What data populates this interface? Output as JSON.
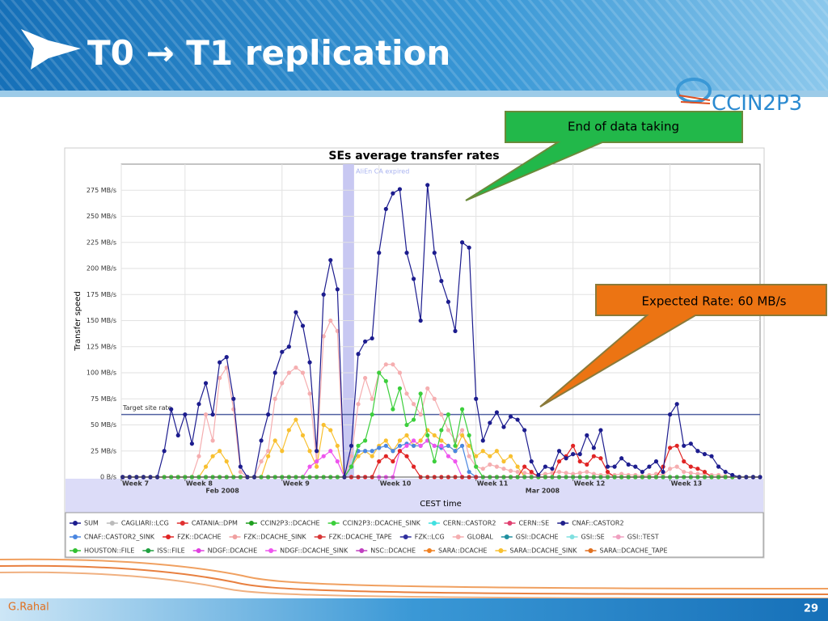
{
  "slide": {
    "title": "T0 → T1 replication",
    "logo": "CCIN2P3",
    "callouts": [
      {
        "text": "End of data taking"
      },
      {
        "text": "Expected Rate: 60 MB/s"
      }
    ],
    "author": "G.Rahal",
    "page": 29
  },
  "chart_data": {
    "type": "line",
    "title": "SEs average transfer rates",
    "x_label": "CEST time",
    "y_label": "Transfer speed",
    "xlim": [
      -4.6,
      41.5
    ],
    "ylim": [
      0,
      300
    ],
    "grid": true,
    "xticks": [
      {
        "value": -4.6,
        "label": "Week 7"
      },
      {
        "value": 0,
        "label": "Week 8"
      },
      {
        "value": 7,
        "label": "Week 9"
      },
      {
        "value": 14,
        "label": "Week 10"
      },
      {
        "value": 21,
        "label": "Week 11"
      },
      {
        "value": 28,
        "label": "Week 12"
      },
      {
        "value": 35,
        "label": "Week 13"
      }
    ],
    "yticks": [
      {
        "value": 0,
        "label": "0 B/s"
      },
      {
        "value": 25,
        "label": "25 MB/s"
      },
      {
        "value": 50,
        "label": "50 MB/s"
      },
      {
        "value": 75,
        "label": "75 MB/s"
      },
      {
        "value": 100,
        "label": "100 MB/s"
      },
      {
        "value": 125,
        "label": "125 MB/s"
      },
      {
        "value": 150,
        "label": "150 MB/s"
      },
      {
        "value": 175,
        "label": "175 MB/s"
      },
      {
        "value": 200,
        "label": "200 MB/s"
      },
      {
        "value": 225,
        "label": "225 MB/s"
      },
      {
        "value": 250,
        "label": "250 MB/s"
      },
      {
        "value": 275,
        "label": "275 MB/s"
      }
    ],
    "annotations": [
      {
        "text": "Feb 2008",
        "x": 2.7
      },
      {
        "text": "Mar 2008",
        "x": 25.8
      }
    ],
    "reference_line": {
      "label": "Target site rate",
      "value": 60
    },
    "span": {
      "label": "AliEn CA expired",
      "x": [
        11.4,
        12.2
      ]
    },
    "x": [
      -4.5,
      -4,
      -3.5,
      -3,
      -2.5,
      -2,
      -1.5,
      -1,
      -0.5,
      0,
      0.5,
      1,
      1.5,
      2,
      2.5,
      3,
      3.5,
      4,
      4.5,
      5,
      5.5,
      6,
      6.5,
      7,
      7.5,
      8,
      8.5,
      9,
      9.5,
      10,
      10.5,
      11,
      11.5,
      12,
      12.5,
      13,
      13.5,
      14,
      14.5,
      15,
      15.5,
      16,
      16.5,
      17,
      17.5,
      18,
      18.5,
      19,
      19.5,
      20,
      20.5,
      21,
      21.5,
      22,
      22.5,
      23,
      23.5,
      24,
      24.5,
      25,
      25.5,
      26,
      26.5,
      27,
      27.5,
      28,
      28.5,
      29,
      29.5,
      30,
      30.5,
      31,
      31.5,
      32,
      32.5,
      33,
      33.5,
      34,
      34.5,
      35,
      35.5,
      36,
      36.5,
      37,
      37.5,
      38,
      38.5,
      39,
      39.5,
      40,
      40.5,
      41,
      41.5
    ],
    "series": [
      {
        "name": "GLOBAL",
        "color": "#f5aeb0",
        "values": [
          0,
          0,
          0,
          0,
          0,
          0,
          0,
          0,
          0,
          0,
          0,
          20,
          60,
          35,
          95,
          105,
          65,
          5,
          0,
          0,
          15,
          25,
          75,
          90,
          100,
          105,
          100,
          80,
          15,
          135,
          150,
          140,
          0,
          20,
          70,
          95,
          75,
          100,
          108,
          108,
          100,
          80,
          70,
          60,
          85,
          75,
          60,
          45,
          35,
          45,
          20,
          10,
          8,
          12,
          10,
          8,
          6,
          5,
          4,
          3,
          2,
          3,
          4,
          5,
          4,
          3,
          4,
          5,
          3,
          2,
          2,
          2,
          3,
          2,
          2,
          1,
          2,
          3,
          2,
          8,
          10,
          5,
          4,
          3,
          3,
          2,
          2,
          1,
          0,
          0,
          0,
          0,
          0
        ]
      },
      {
        "name": "SARA::DCACHE_SINK",
        "color": "#f8c030",
        "values": [
          0,
          0,
          0,
          0,
          0,
          0,
          0,
          0,
          0,
          0,
          0,
          0,
          10,
          20,
          25,
          15,
          0,
          0,
          0,
          0,
          0,
          20,
          35,
          25,
          45,
          55,
          40,
          25,
          10,
          50,
          45,
          30,
          0,
          10,
          20,
          25,
          20,
          30,
          35,
          25,
          35,
          40,
          30,
          35,
          45,
          40,
          35,
          30,
          25,
          40,
          30,
          20,
          25,
          20,
          25,
          15,
          20,
          10,
          0,
          0,
          0,
          0,
          0,
          0,
          0,
          0,
          0,
          0,
          0,
          0,
          0,
          0,
          0,
          0,
          0,
          0,
          0,
          0,
          0,
          0,
          0,
          0,
          0,
          0,
          0,
          0,
          0,
          0,
          0,
          0,
          0,
          0,
          0
        ]
      },
      {
        "name": "CNAF::CASTOR2_SINK",
        "color": "#4a86e0",
        "values": [
          0,
          0,
          0,
          0,
          0,
          0,
          0,
          0,
          0,
          0,
          0,
          0,
          0,
          0,
          0,
          0,
          0,
          0,
          0,
          0,
          0,
          0,
          0,
          0,
          0,
          0,
          0,
          0,
          0,
          0,
          0,
          0,
          0,
          10,
          25,
          25,
          25,
          28,
          30,
          25,
          30,
          32,
          30,
          30,
          35,
          30,
          28,
          30,
          25,
          30,
          5,
          0,
          0,
          0,
          0,
          0,
          0,
          0,
          0,
          0,
          0,
          0,
          0,
          0,
          0,
          0,
          0,
          0,
          0,
          0,
          0,
          0,
          0,
          0,
          0,
          0,
          0,
          0,
          0,
          0,
          0,
          0,
          0,
          0,
          0,
          0,
          0,
          0,
          0,
          0,
          0,
          0,
          0
        ]
      },
      {
        "name": "NDGF::DCACHE_SINK",
        "color": "#ee55ee",
        "values": [
          0,
          0,
          0,
          0,
          0,
          0,
          0,
          0,
          0,
          0,
          0,
          0,
          0,
          0,
          0,
          0,
          0,
          0,
          0,
          0,
          0,
          0,
          0,
          0,
          0,
          0,
          0,
          10,
          15,
          20,
          25,
          15,
          0,
          0,
          0,
          0,
          0,
          0,
          0,
          0,
          25,
          30,
          35,
          30,
          35,
          30,
          30,
          20,
          15,
          0,
          0,
          0,
          0,
          0,
          0,
          0,
          0,
          0,
          0,
          0,
          0,
          0,
          0,
          0,
          0,
          0,
          0,
          0,
          0,
          0,
          0,
          0,
          0,
          0,
          0,
          0,
          0,
          0,
          0,
          0,
          0,
          0,
          0,
          0,
          0,
          0,
          0,
          0,
          0,
          0,
          0,
          0,
          0
        ]
      },
      {
        "name": "FZK::DCACHE",
        "color": "#e02424",
        "values": [
          0,
          0,
          0,
          0,
          0,
          0,
          0,
          0,
          0,
          0,
          0,
          0,
          0,
          0,
          0,
          0,
          0,
          0,
          0,
          0,
          0,
          0,
          0,
          0,
          0,
          0,
          0,
          0,
          0,
          0,
          0,
          0,
          0,
          0,
          0,
          0,
          0,
          15,
          20,
          15,
          25,
          20,
          10,
          0,
          0,
          0,
          0,
          0,
          0,
          0,
          0,
          0,
          0,
          0,
          0,
          0,
          0,
          0,
          10,
          5,
          0,
          0,
          0,
          15,
          20,
          30,
          15,
          12,
          20,
          18,
          5,
          0,
          0,
          0,
          0,
          0,
          0,
          0,
          10,
          28,
          30,
          15,
          10,
          8,
          5,
          0,
          0,
          0,
          0,
          0,
          0,
          0,
          0
        ]
      },
      {
        "name": "CCIN2P3::DCACHE_SINK",
        "color": "#3ccf3c",
        "values": [
          0,
          0,
          0,
          0,
          0,
          0,
          0,
          0,
          0,
          0,
          0,
          0,
          0,
          0,
          0,
          0,
          0,
          0,
          0,
          0,
          0,
          0,
          0,
          0,
          0,
          0,
          0,
          0,
          0,
          0,
          0,
          0,
          0,
          10,
          30,
          35,
          60,
          100,
          92,
          65,
          85,
          50,
          55,
          80,
          40,
          15,
          45,
          60,
          30,
          65,
          40,
          10,
          0,
          0,
          0,
          0,
          0,
          0,
          0,
          0,
          0,
          0,
          0,
          0,
          0,
          0,
          0,
          0,
          0,
          0,
          0,
          0,
          0,
          0,
          0,
          0,
          0,
          0,
          0,
          0,
          0,
          0,
          0,
          0,
          0,
          0,
          0,
          0,
          0,
          0,
          0,
          0,
          0
        ]
      },
      {
        "name": "SUM",
        "color": "#1c1c8e",
        "values": [
          0,
          0,
          0,
          0,
          0,
          0,
          25,
          65,
          40,
          60,
          32,
          70,
          90,
          60,
          110,
          115,
          75,
          10,
          0,
          0,
          35,
          60,
          100,
          120,
          125,
          158,
          145,
          110,
          25,
          175,
          208,
          180,
          0,
          30,
          118,
          130,
          133,
          215,
          257,
          272,
          276,
          215,
          190,
          150,
          280,
          215,
          188,
          168,
          140,
          225,
          220,
          75,
          35,
          52,
          62,
          48,
          58,
          55,
          45,
          15,
          2,
          10,
          8,
          25,
          18,
          22,
          22,
          40,
          28,
          45,
          10,
          10,
          18,
          12,
          10,
          5,
          10,
          15,
          5,
          60,
          70,
          30,
          32,
          25,
          22,
          20,
          10,
          5,
          2,
          0,
          0,
          0,
          0
        ]
      }
    ],
    "legend": [
      {
        "name": "SUM",
        "color": "#1c1c8e"
      },
      {
        "name": "CAGLIARI::LCG",
        "color": "#bbbbbb"
      },
      {
        "name": "CATANIA::DPM",
        "color": "#e03030"
      },
      {
        "name": "CCIN2P3::DCACHE",
        "color": "#1f9f1f"
      },
      {
        "name": "CCIN2P3::DCACHE_SINK",
        "color": "#3ccf3c"
      },
      {
        "name": "CERN::CASTOR2",
        "color": "#40e0e0"
      },
      {
        "name": "CERN::SE",
        "color": "#e04070"
      },
      {
        "name": "CNAF::CASTOR2",
        "color": "#20208c"
      },
      {
        "name": "CNAF::CASTOR2_SINK",
        "color": "#4a86e0"
      },
      {
        "name": "FZK::DCACHE",
        "color": "#e02424"
      },
      {
        "name": "FZK::DCACHE_SINK",
        "color": "#f0a0a0"
      },
      {
        "name": "FZK::DCACHE_TAPE",
        "color": "#d83838"
      },
      {
        "name": "FZK::LCG",
        "color": "#30309e"
      },
      {
        "name": "GLOBAL",
        "color": "#f5aeb0"
      },
      {
        "name": "GSI::DCACHE",
        "color": "#2090a0"
      },
      {
        "name": "GSI::SE",
        "color": "#80e0e0"
      },
      {
        "name": "GSI::TEST",
        "color": "#f0a0c0"
      },
      {
        "name": "HOUSTON::FILE",
        "color": "#30c030"
      },
      {
        "name": "ISS::FILE",
        "color": "#20a040"
      },
      {
        "name": "NDGF::DCACHE",
        "color": "#e040e0"
      },
      {
        "name": "NDGF::DCACHE_SINK",
        "color": "#ee55ee"
      },
      {
        "name": "NSC::DCACHE",
        "color": "#c040c0"
      },
      {
        "name": "SARA::DCACHE",
        "color": "#f08020"
      },
      {
        "name": "SARA::DCACHE_SINK",
        "color": "#f8c030"
      },
      {
        "name": "SARA::DCACHE_TAPE",
        "color": "#e07020"
      }
    ]
  }
}
